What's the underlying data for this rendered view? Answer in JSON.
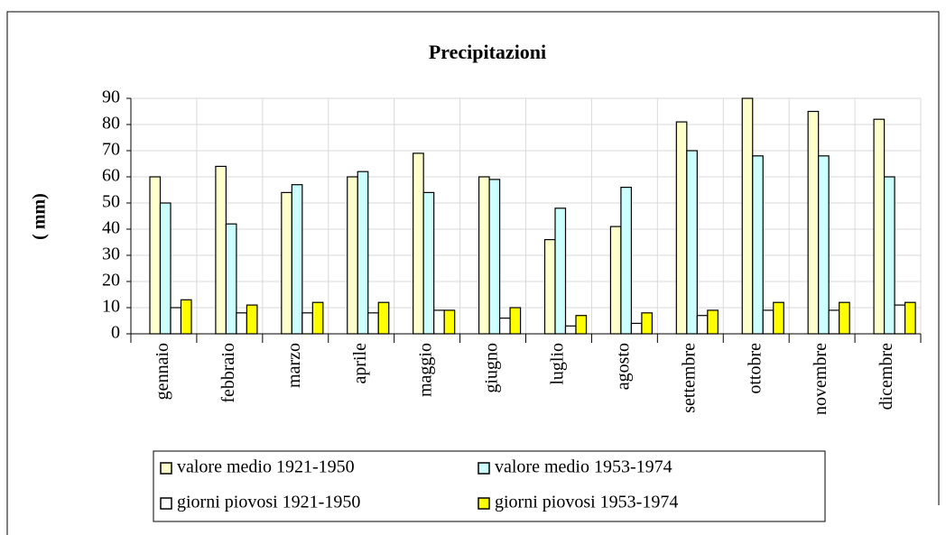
{
  "chart_data": {
    "type": "bar",
    "title": "Precipitazioni",
    "y_label": "( mm)",
    "categories": [
      "gennaio",
      "febbraio",
      "marzo",
      "aprile",
      "maggio",
      "giugno",
      "luglio",
      "agosto",
      "settembre",
      "ottobre",
      "novembre",
      "dicembre"
    ],
    "series": [
      {
        "name": "valore medio 1921-1950",
        "color": "#ffffcc",
        "values": [
          60,
          64,
          54,
          60,
          69,
          60,
          36,
          41,
          81,
          90,
          85,
          82
        ]
      },
      {
        "name": "valore medio 1953-1974",
        "color": "#ccffff",
        "values": [
          50,
          42,
          57,
          62,
          54,
          59,
          48,
          56,
          70,
          68,
          68,
          60
        ]
      },
      {
        "name": "giorni piovosi 1921-1950",
        "color": "#ffffff",
        "values": [
          10,
          8,
          8,
          8,
          9,
          6,
          3,
          4,
          7,
          9,
          9,
          11
        ]
      },
      {
        "name": "giorni piovosi 1953-1974",
        "color": "#ffff00",
        "values": [
          13,
          11,
          12,
          12,
          9,
          10,
          7,
          8,
          9,
          12,
          12,
          12
        ]
      }
    ],
    "ylim": [
      0,
      90
    ],
    "yticks": [
      0,
      10,
      20,
      30,
      40,
      50,
      60,
      70,
      80,
      90
    ],
    "grid": true
  }
}
